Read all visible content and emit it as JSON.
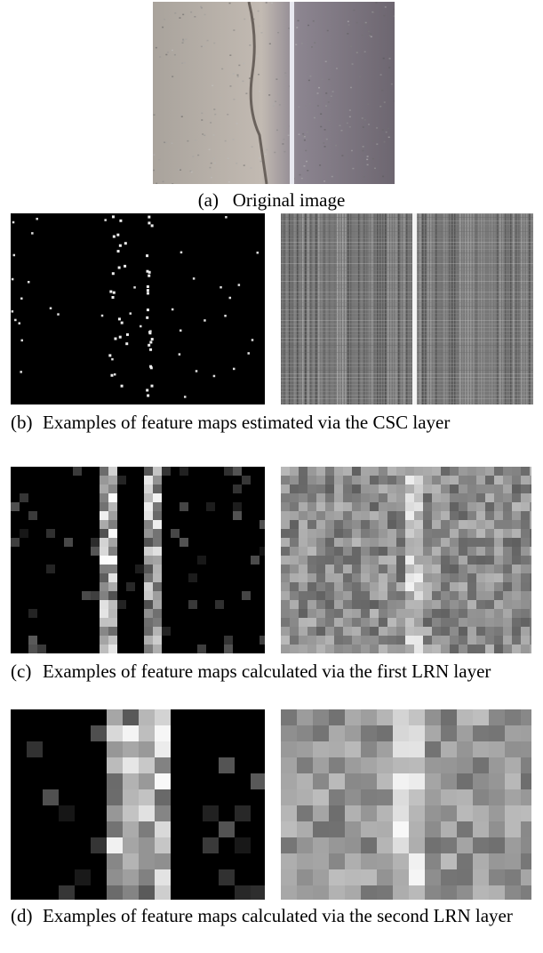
{
  "figure": {
    "panels": [
      {
        "label": "(a)",
        "caption": "Original image"
      },
      {
        "label": "(b)",
        "caption": "Examples of feature maps estimated via the CSC layer"
      },
      {
        "label": "(c)",
        "caption": "Examples of feature maps calculated via the first LRN layer"
      },
      {
        "label": "(d)",
        "caption": "Examples of feature maps calculated via the second LRN layer"
      }
    ]
  }
}
